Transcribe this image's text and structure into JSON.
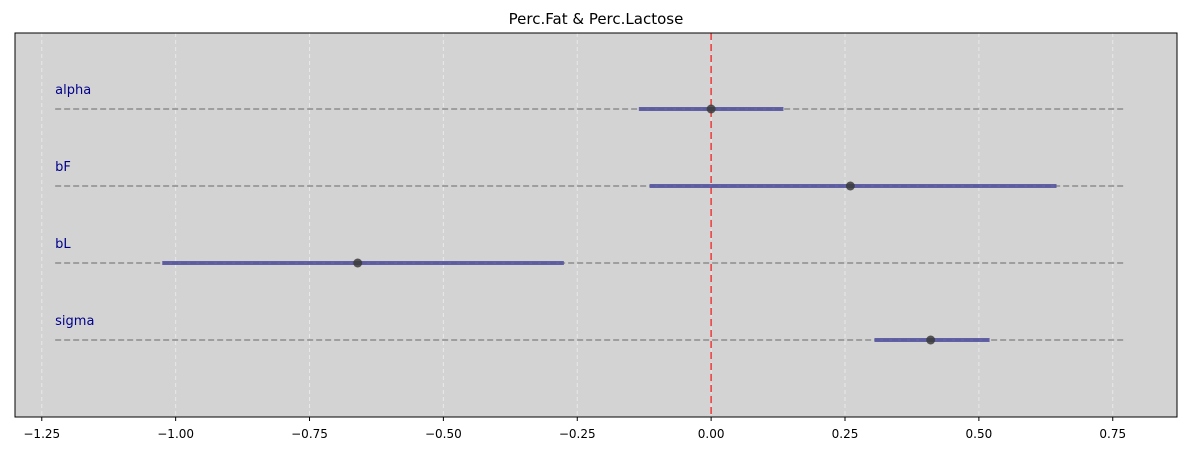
{
  "chart_data": {
    "type": "forest",
    "title": "Perc.Fat & Perc.Lactose",
    "xlabel": "",
    "ylabel": "",
    "xlim": [
      -1.3,
      0.87
    ],
    "xticks": [
      -1.25,
      -1.0,
      -0.75,
      -0.5,
      -0.25,
      0.0,
      0.25,
      0.5,
      0.75
    ],
    "xtick_labels": [
      "−1.25",
      "−1.00",
      "−0.75",
      "−0.50",
      "−0.25",
      "0.00",
      "0.25",
      "0.50",
      "0.75"
    ],
    "grid": true,
    "reference_line": 0.0,
    "parameters": [
      {
        "name": "alpha",
        "mean": 0.0,
        "lower": -0.135,
        "upper": 0.135
      },
      {
        "name": "bF",
        "mean": 0.26,
        "lower": -0.115,
        "upper": 0.645
      },
      {
        "name": "bL",
        "mean": -0.66,
        "lower": -1.025,
        "upper": -0.275
      },
      {
        "name": "sigma",
        "mean": 0.41,
        "lower": 0.305,
        "upper": 0.52
      }
    ],
    "colors": {
      "background": "#d3d3d3",
      "interval": "#5555a0",
      "point": "#3b3b3b",
      "reference": "#ee4444",
      "label": "#00008b",
      "guide": "#8c8c8c",
      "grid": "#eeeeee"
    }
  }
}
